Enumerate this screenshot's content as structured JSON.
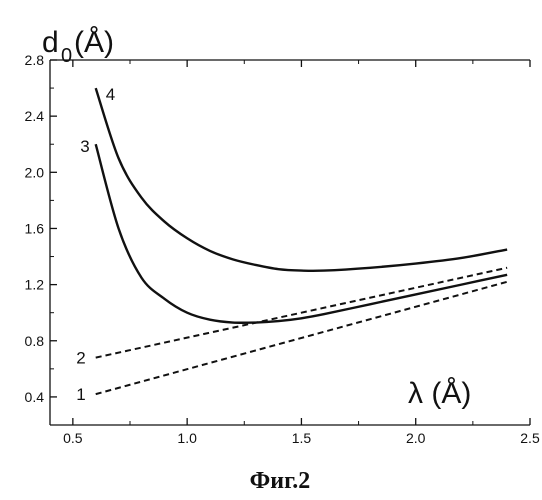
{
  "chart_data": {
    "type": "line",
    "title": "",
    "caption": "Фиг.2",
    "ylabel": {
      "main": "d",
      "sub": "0",
      "unit": "(Å)"
    },
    "xlabel": "λ (Å)",
    "xlim": [
      0.4,
      2.5
    ],
    "ylim": [
      0.2,
      2.8
    ],
    "xticks": [
      "0.5",
      "1.0",
      "1.5",
      "2.0",
      "2.5"
    ],
    "xtick_values": [
      0.5,
      1.0,
      1.5,
      2.0,
      2.5
    ],
    "yticks": [
      "0.4",
      "0.8",
      "1.2",
      "1.6",
      "2.0",
      "2.4",
      "2.8"
    ],
    "ytick_values": [
      0.4,
      0.8,
      1.2,
      1.6,
      2.0,
      2.4,
      2.8
    ],
    "grid": false,
    "series": [
      {
        "label": "1",
        "style": "dashed",
        "x": [
          0.6,
          2.4
        ],
        "y": [
          0.42,
          1.22
        ]
      },
      {
        "label": "2",
        "style": "dashed",
        "x": [
          0.6,
          2.4
        ],
        "y": [
          0.68,
          1.32
        ]
      },
      {
        "label": "3",
        "style": "solid",
        "x": [
          0.6,
          0.7,
          0.8,
          0.9,
          1.0,
          1.1,
          1.2,
          1.3,
          1.4,
          1.5,
          1.6,
          1.8,
          2.0,
          2.2,
          2.4
        ],
        "y": [
          2.2,
          1.6,
          1.25,
          1.1,
          1.0,
          0.95,
          0.93,
          0.93,
          0.94,
          0.96,
          0.99,
          1.06,
          1.13,
          1.2,
          1.27
        ]
      },
      {
        "label": "4",
        "style": "solid",
        "x": [
          0.6,
          0.7,
          0.8,
          0.9,
          1.0,
          1.1,
          1.2,
          1.3,
          1.4,
          1.5,
          1.6,
          1.8,
          2.0,
          2.2,
          2.4
        ],
        "y": [
          2.6,
          2.1,
          1.82,
          1.65,
          1.53,
          1.44,
          1.38,
          1.34,
          1.31,
          1.3,
          1.3,
          1.32,
          1.35,
          1.39,
          1.45
        ]
      }
    ]
  }
}
